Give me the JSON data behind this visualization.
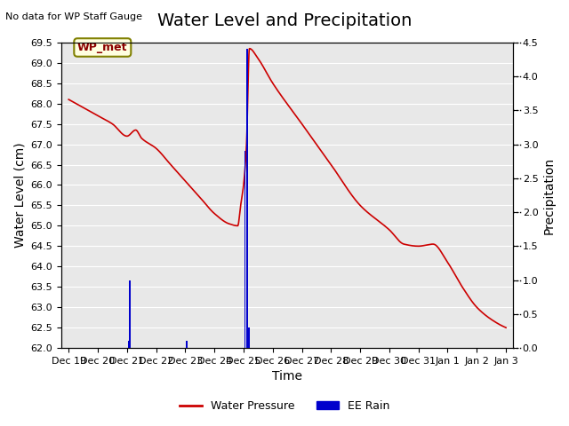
{
  "title": "Water Level and Precipitation",
  "subtitle": "No data for WP Staff Gauge",
  "xlabel": "Time",
  "ylabel_left": "Water Level (cm)",
  "ylabel_right": "Precipitation",
  "annotation_label": "WP_met",
  "legend_water": "Water Pressure",
  "legend_rain": "EE Rain",
  "ylim_left": [
    62.0,
    69.5
  ],
  "ylim_right": [
    0.0,
    4.5
  ],
  "yticks_left": [
    62.0,
    62.5,
    63.0,
    63.5,
    64.0,
    64.5,
    65.0,
    65.5,
    66.0,
    66.5,
    67.0,
    67.5,
    68.0,
    68.5,
    69.0,
    69.5
  ],
  "yticks_right": [
    0.0,
    0.5,
    1.0,
    1.5,
    2.0,
    2.5,
    3.0,
    3.5,
    4.0,
    4.5
  ],
  "bg_color": "#e8e8e8",
  "water_color": "#cc0000",
  "rain_color": "#0000cc",
  "title_fontsize": 14,
  "label_fontsize": 10,
  "tick_fontsize": 8
}
